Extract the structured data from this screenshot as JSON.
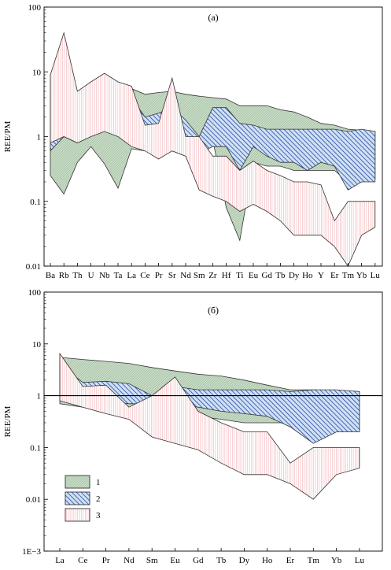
{
  "colors": {
    "group1_fill": "#c9dcc5",
    "group1_hatch": "#7ea287",
    "group2_fill": "#cfe0f5",
    "group2_hatch": "#1c3f9a",
    "group3_fill": "#ffffff",
    "group3_hatch": "#f2a8ae",
    "outline": "#333333"
  },
  "legend": {
    "items": [
      {
        "group": "1",
        "label": "1"
      },
      {
        "group": "2",
        "label": "2"
      },
      {
        "group": "3",
        "label": "3"
      }
    ]
  },
  "chart_data": [
    {
      "type": "area",
      "panel_label": "(a)",
      "ylabel": "REE/PM",
      "yscale": "log",
      "ylim": [
        0.01,
        100
      ],
      "y_ticks": [
        0.01,
        0.1,
        1,
        10,
        100
      ],
      "y_tick_labels": [
        "0.01",
        "0.1",
        "1",
        "10",
        "100"
      ],
      "categories": [
        "Ba",
        "Rb",
        "Th",
        "U",
        "Nb",
        "Ta",
        "La",
        "Ce",
        "Pr",
        "Sr",
        "Nd",
        "Sm",
        "Zr",
        "Hf",
        "Ti",
        "Eu",
        "Gd",
        "Tb",
        "Dy",
        "Ho",
        "Y",
        "Er",
        "Tm",
        "Yb",
        "Lu"
      ],
      "reference_line": null,
      "series": [
        {
          "group": "1",
          "upper": [
            3.5,
            6.0,
            3.0,
            4.0,
            6.5,
            5.0,
            5.5,
            4.5,
            4.8,
            5.0,
            4.5,
            4.2,
            4.0,
            3.8,
            3.0,
            3.0,
            3.0,
            2.6,
            2.4,
            2.0,
            1.6,
            1.5,
            1.3,
            1.25,
            1.2
          ],
          "lower": [
            0.25,
            0.13,
            0.4,
            0.7,
            0.38,
            0.16,
            0.65,
            0.6,
            0.7,
            0.7,
            0.6,
            0.5,
            0.9,
            0.08,
            0.025,
            0.4,
            0.35,
            0.35,
            0.3,
            0.3,
            0.3,
            0.3,
            0.2,
            0.25,
            0.22
          ]
        },
        {
          "group": "2",
          "upper": [
            9.0,
            3.5,
            2.0,
            3.0,
            4.5,
            3.8,
            4.0,
            2.0,
            2.3,
            2.8,
            1.8,
            1.0,
            2.8,
            2.8,
            1.6,
            1.5,
            1.3,
            1.3,
            1.3,
            1.3,
            1.3,
            1.3,
            1.2,
            1.3,
            1.2
          ],
          "lower": [
            0.6,
            1.0,
            0.8,
            1.2,
            2.0,
            1.5,
            1.6,
            0.9,
            0.8,
            0.6,
            0.5,
            0.55,
            0.7,
            0.7,
            0.3,
            0.7,
            0.5,
            0.4,
            0.4,
            0.3,
            0.4,
            0.35,
            0.15,
            0.2,
            0.2
          ]
        },
        {
          "group": "3",
          "upper": [
            9.0,
            40.0,
            5.0,
            7.0,
            9.5,
            7.0,
            6.0,
            1.5,
            1.6,
            8.0,
            1.0,
            1.0,
            0.5,
            0.5,
            0.3,
            0.42,
            0.3,
            0.25,
            0.2,
            0.2,
            0.18,
            0.05,
            0.1,
            0.1,
            0.1
          ],
          "lower": [
            0.8,
            1.0,
            0.8,
            1.0,
            1.2,
            1.0,
            0.7,
            0.6,
            0.45,
            0.6,
            0.5,
            0.15,
            0.12,
            0.1,
            0.07,
            0.09,
            0.07,
            0.05,
            0.03,
            0.03,
            0.03,
            0.02,
            0.01,
            0.03,
            0.04
          ]
        }
      ]
    },
    {
      "type": "area",
      "panel_label": "(б)",
      "ylabel": "REE/PM",
      "yscale": "log",
      "ylim": [
        0.001,
        100
      ],
      "y_ticks": [
        0.001,
        0.01,
        0.1,
        1,
        10,
        100
      ],
      "y_tick_labels": [
        "1E−3",
        "0.01",
        "0.1",
        "1",
        "10",
        "100"
      ],
      "categories": [
        "La",
        "Ce",
        "Pr",
        "Nd",
        "Sm",
        "Eu",
        "Gd",
        "Tb",
        "Dy",
        "Ho",
        "Er",
        "Tm",
        "Yb",
        "Lu"
      ],
      "reference_line": 1,
      "series": [
        {
          "group": "1",
          "upper": [
            5.5,
            5.0,
            4.6,
            4.2,
            3.5,
            3.0,
            2.6,
            2.4,
            2.0,
            1.6,
            1.3,
            1.3,
            1.25,
            1.2
          ],
          "lower": [
            0.7,
            0.6,
            0.6,
            0.5,
            0.55,
            0.45,
            0.4,
            0.35,
            0.3,
            0.3,
            0.3,
            0.2,
            0.25,
            0.22
          ]
        },
        {
          "group": "2",
          "upper": [
            4.0,
            1.8,
            1.9,
            1.7,
            1.0,
            1.5,
            1.3,
            1.3,
            1.3,
            1.3,
            1.2,
            1.3,
            1.3,
            1.2
          ],
          "lower": [
            1.5,
            0.9,
            0.8,
            0.7,
            0.7,
            0.7,
            0.6,
            0.5,
            0.45,
            0.4,
            0.25,
            0.12,
            0.2,
            0.2
          ]
        },
        {
          "group": "3",
          "upper": [
            6.5,
            1.5,
            1.6,
            0.6,
            1.0,
            2.3,
            0.5,
            0.3,
            0.2,
            0.2,
            0.05,
            0.1,
            0.1,
            0.1
          ],
          "lower": [
            0.8,
            0.6,
            0.45,
            0.35,
            0.16,
            0.12,
            0.09,
            0.05,
            0.03,
            0.03,
            0.02,
            0.01,
            0.03,
            0.04
          ]
        }
      ]
    }
  ]
}
